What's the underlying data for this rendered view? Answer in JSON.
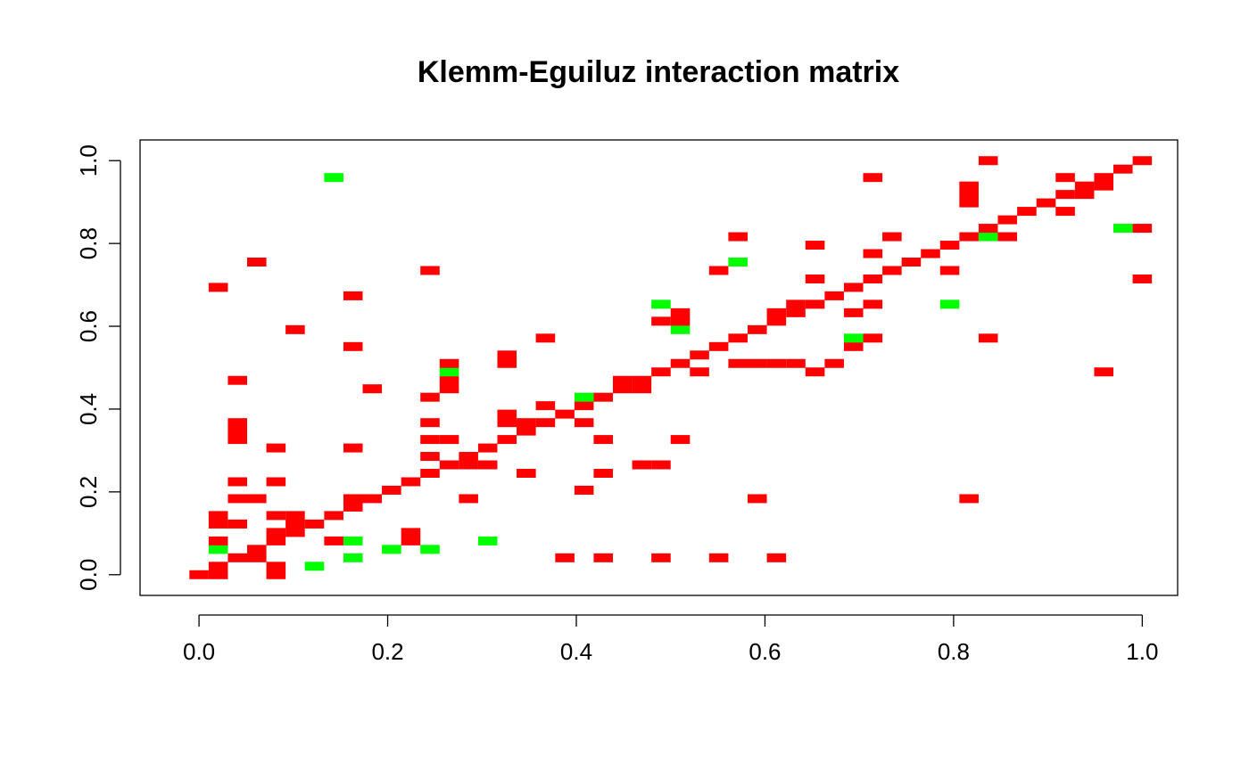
{
  "chart_data": {
    "type": "heatmap",
    "title": "Klemm-Eguiluz interaction matrix",
    "xlabel": "",
    "ylabel": "",
    "xlim": [
      -0.0625,
      1.0375
    ],
    "ylim": [
      -0.05,
      1.05
    ],
    "xticks": [
      0.0,
      0.2,
      0.4,
      0.6,
      0.8,
      1.0
    ],
    "yticks": [
      0.0,
      0.2,
      0.4,
      0.6,
      0.8,
      1.0
    ],
    "xtick_labels": [
      "0.0",
      "0.2",
      "0.4",
      "0.6",
      "0.8",
      "1.0"
    ],
    "ytick_labels": [
      "0.0",
      "0.2",
      "0.4",
      "0.6",
      "0.8",
      "1.0"
    ],
    "grid": false,
    "grid_n": 50,
    "cell_width": 0.0204,
    "cell_height": 0.0204,
    "colors": {
      "positive": "#ff0000",
      "negative": "#00ff00"
    },
    "cells": [
      {
        "x": 0.0,
        "y": 0.0,
        "v": 1
      },
      {
        "x": 0.0204,
        "y": 0.0,
        "v": 1
      },
      {
        "x": 0.0816,
        "y": 0.0,
        "v": 1
      },
      {
        "x": 0.0204,
        "y": 0.0204,
        "v": 1
      },
      {
        "x": 0.0816,
        "y": 0.0204,
        "v": 1
      },
      {
        "x": 0.1224,
        "y": 0.0204,
        "v": -1
      },
      {
        "x": 0.0408,
        "y": 0.0408,
        "v": 1
      },
      {
        "x": 0.0612,
        "y": 0.0408,
        "v": 1
      },
      {
        "x": 0.1633,
        "y": 0.0408,
        "v": -1
      },
      {
        "x": 0.3878,
        "y": 0.0408,
        "v": 1
      },
      {
        "x": 0.4286,
        "y": 0.0408,
        "v": 1
      },
      {
        "x": 0.4898,
        "y": 0.0408,
        "v": 1
      },
      {
        "x": 0.551,
        "y": 0.0408,
        "v": 1
      },
      {
        "x": 0.6122,
        "y": 0.0408,
        "v": 1
      },
      {
        "x": 0.0204,
        "y": 0.0612,
        "v": -1
      },
      {
        "x": 0.0612,
        "y": 0.0612,
        "v": 1
      },
      {
        "x": 0.2041,
        "y": 0.0612,
        "v": -1
      },
      {
        "x": 0.2449,
        "y": 0.0612,
        "v": -1
      },
      {
        "x": 0.0204,
        "y": 0.0816,
        "v": 1
      },
      {
        "x": 0.0816,
        "y": 0.0816,
        "v": 1
      },
      {
        "x": 0.1429,
        "y": 0.0816,
        "v": 1
      },
      {
        "x": 0.1633,
        "y": 0.0816,
        "v": -1
      },
      {
        "x": 0.2245,
        "y": 0.0816,
        "v": 1
      },
      {
        "x": 0.3061,
        "y": 0.0816,
        "v": -1
      },
      {
        "x": 0.0816,
        "y": 0.102,
        "v": 1
      },
      {
        "x": 0.102,
        "y": 0.102,
        "v": 1
      },
      {
        "x": 0.2245,
        "y": 0.102,
        "v": 1
      },
      {
        "x": 0.0204,
        "y": 0.1224,
        "v": 1
      },
      {
        "x": 0.0408,
        "y": 0.1224,
        "v": 1
      },
      {
        "x": 0.102,
        "y": 0.1224,
        "v": 1
      },
      {
        "x": 0.1224,
        "y": 0.1224,
        "v": 1
      },
      {
        "x": 0.0204,
        "y": 0.1429,
        "v": 1
      },
      {
        "x": 0.0816,
        "y": 0.1429,
        "v": 1
      },
      {
        "x": 0.102,
        "y": 0.1429,
        "v": 1
      },
      {
        "x": 0.1429,
        "y": 0.1429,
        "v": 1
      },
      {
        "x": 0.1633,
        "y": 0.1633,
        "v": 1
      },
      {
        "x": 0.0408,
        "y": 0.1837,
        "v": 1
      },
      {
        "x": 0.0612,
        "y": 0.1837,
        "v": 1
      },
      {
        "x": 0.1633,
        "y": 0.1837,
        "v": 1
      },
      {
        "x": 0.1837,
        "y": 0.1837,
        "v": 1
      },
      {
        "x": 0.2857,
        "y": 0.1837,
        "v": 1
      },
      {
        "x": 0.5918,
        "y": 0.1837,
        "v": 1
      },
      {
        "x": 0.8163,
        "y": 0.1837,
        "v": 1
      },
      {
        "x": 0.2041,
        "y": 0.2041,
        "v": 1
      },
      {
        "x": 0.4082,
        "y": 0.2041,
        "v": 1
      },
      {
        "x": 0.0408,
        "y": 0.2245,
        "v": 1
      },
      {
        "x": 0.0816,
        "y": 0.2245,
        "v": 1
      },
      {
        "x": 0.2245,
        "y": 0.2245,
        "v": 1
      },
      {
        "x": 0.2449,
        "y": 0.2449,
        "v": 1
      },
      {
        "x": 0.3469,
        "y": 0.2449,
        "v": 1
      },
      {
        "x": 0.4286,
        "y": 0.2449,
        "v": 1
      },
      {
        "x": 0.2653,
        "y": 0.2653,
        "v": 1
      },
      {
        "x": 0.2857,
        "y": 0.2653,
        "v": 1
      },
      {
        "x": 0.3061,
        "y": 0.2653,
        "v": 1
      },
      {
        "x": 0.4694,
        "y": 0.2653,
        "v": 1
      },
      {
        "x": 0.4898,
        "y": 0.2653,
        "v": 1
      },
      {
        "x": 0.2449,
        "y": 0.2857,
        "v": 1
      },
      {
        "x": 0.2857,
        "y": 0.2857,
        "v": 1
      },
      {
        "x": 0.0816,
        "y": 0.3061,
        "v": 1
      },
      {
        "x": 0.1633,
        "y": 0.3061,
        "v": 1
      },
      {
        "x": 0.3061,
        "y": 0.3061,
        "v": 1
      },
      {
        "x": 0.0408,
        "y": 0.3265,
        "v": 1
      },
      {
        "x": 0.2449,
        "y": 0.3265,
        "v": 1
      },
      {
        "x": 0.2653,
        "y": 0.3265,
        "v": 1
      },
      {
        "x": 0.3265,
        "y": 0.3265,
        "v": 1
      },
      {
        "x": 0.4286,
        "y": 0.3265,
        "v": 1
      },
      {
        "x": 0.5102,
        "y": 0.3265,
        "v": 1
      },
      {
        "x": 0.0408,
        "y": 0.3469,
        "v": 1
      },
      {
        "x": 0.3469,
        "y": 0.3469,
        "v": 1
      },
      {
        "x": 0.0408,
        "y": 0.3673,
        "v": 1
      },
      {
        "x": 0.2449,
        "y": 0.3673,
        "v": 1
      },
      {
        "x": 0.3265,
        "y": 0.3673,
        "v": 1
      },
      {
        "x": 0.3469,
        "y": 0.3673,
        "v": 1
      },
      {
        "x": 0.3673,
        "y": 0.3673,
        "v": 1
      },
      {
        "x": 0.4082,
        "y": 0.3673,
        "v": 1
      },
      {
        "x": 0.3265,
        "y": 0.3878,
        "v": 1
      },
      {
        "x": 0.3878,
        "y": 0.3878,
        "v": 1
      },
      {
        "x": 0.3673,
        "y": 0.4082,
        "v": 1
      },
      {
        "x": 0.4082,
        "y": 0.4082,
        "v": 1
      },
      {
        "x": 0.2449,
        "y": 0.4286,
        "v": 1
      },
      {
        "x": 0.4082,
        "y": 0.4286,
        "v": -1
      },
      {
        "x": 0.4286,
        "y": 0.4286,
        "v": 1
      },
      {
        "x": 0.1837,
        "y": 0.449,
        "v": 1
      },
      {
        "x": 0.2653,
        "y": 0.449,
        "v": 1
      },
      {
        "x": 0.449,
        "y": 0.449,
        "v": 1
      },
      {
        "x": 0.4694,
        "y": 0.449,
        "v": 1
      },
      {
        "x": 0.0408,
        "y": 0.4694,
        "v": 1
      },
      {
        "x": 0.2653,
        "y": 0.4694,
        "v": 1
      },
      {
        "x": 0.449,
        "y": 0.4694,
        "v": 1
      },
      {
        "x": 0.4694,
        "y": 0.4694,
        "v": 1
      },
      {
        "x": 0.2653,
        "y": 0.4898,
        "v": -1
      },
      {
        "x": 0.4898,
        "y": 0.4898,
        "v": 1
      },
      {
        "x": 0.5306,
        "y": 0.4898,
        "v": 1
      },
      {
        "x": 0.6531,
        "y": 0.4898,
        "v": 1
      },
      {
        "x": 0.9592,
        "y": 0.4898,
        "v": 1
      },
      {
        "x": 0.2653,
        "y": 0.5102,
        "v": 1
      },
      {
        "x": 0.3265,
        "y": 0.5102,
        "v": 1
      },
      {
        "x": 0.5102,
        "y": 0.5102,
        "v": 1
      },
      {
        "x": 0.5714,
        "y": 0.5102,
        "v": 1
      },
      {
        "x": 0.5918,
        "y": 0.5102,
        "v": 1
      },
      {
        "x": 0.6122,
        "y": 0.5102,
        "v": 1
      },
      {
        "x": 0.6327,
        "y": 0.5102,
        "v": 1
      },
      {
        "x": 0.6735,
        "y": 0.5102,
        "v": 1
      },
      {
        "x": 0.3265,
        "y": 0.5306,
        "v": 1
      },
      {
        "x": 0.5306,
        "y": 0.5306,
        "v": 1
      },
      {
        "x": 0.1633,
        "y": 0.551,
        "v": 1
      },
      {
        "x": 0.551,
        "y": 0.551,
        "v": 1
      },
      {
        "x": 0.6939,
        "y": 0.551,
        "v": 1
      },
      {
        "x": 0.3673,
        "y": 0.5714,
        "v": 1
      },
      {
        "x": 0.5714,
        "y": 0.5714,
        "v": 1
      },
      {
        "x": 0.6939,
        "y": 0.5714,
        "v": -1
      },
      {
        "x": 0.7143,
        "y": 0.5714,
        "v": 1
      },
      {
        "x": 0.8367,
        "y": 0.5714,
        "v": 1
      },
      {
        "x": 0.102,
        "y": 0.5918,
        "v": 1
      },
      {
        "x": 0.5102,
        "y": 0.5918,
        "v": -1
      },
      {
        "x": 0.5918,
        "y": 0.5918,
        "v": 1
      },
      {
        "x": 0.4898,
        "y": 0.6122,
        "v": 1
      },
      {
        "x": 0.5102,
        "y": 0.6122,
        "v": 1
      },
      {
        "x": 0.6122,
        "y": 0.6122,
        "v": 1
      },
      {
        "x": 0.5102,
        "y": 0.6327,
        "v": 1
      },
      {
        "x": 0.6122,
        "y": 0.6327,
        "v": 1
      },
      {
        "x": 0.6327,
        "y": 0.6327,
        "v": 1
      },
      {
        "x": 0.6939,
        "y": 0.6327,
        "v": 1
      },
      {
        "x": 0.4898,
        "y": 0.6531,
        "v": -1
      },
      {
        "x": 0.6327,
        "y": 0.6531,
        "v": 1
      },
      {
        "x": 0.6531,
        "y": 0.6531,
        "v": 1
      },
      {
        "x": 0.7143,
        "y": 0.6531,
        "v": 1
      },
      {
        "x": 0.7959,
        "y": 0.6531,
        "v": -1
      },
      {
        "x": 0.1633,
        "y": 0.6735,
        "v": 1
      },
      {
        "x": 0.6735,
        "y": 0.6735,
        "v": 1
      },
      {
        "x": 0.0204,
        "y": 0.6939,
        "v": 1
      },
      {
        "x": 0.6939,
        "y": 0.6939,
        "v": 1
      },
      {
        "x": 0.6531,
        "y": 0.7143,
        "v": 1
      },
      {
        "x": 0.7143,
        "y": 0.7143,
        "v": 1
      },
      {
        "x": 1.0,
        "y": 0.7143,
        "v": 1
      },
      {
        "x": 0.2449,
        "y": 0.7347,
        "v": 1
      },
      {
        "x": 0.551,
        "y": 0.7347,
        "v": 1
      },
      {
        "x": 0.7347,
        "y": 0.7347,
        "v": 1
      },
      {
        "x": 0.7959,
        "y": 0.7347,
        "v": 1
      },
      {
        "x": 0.0612,
        "y": 0.7551,
        "v": 1
      },
      {
        "x": 0.5714,
        "y": 0.7551,
        "v": -1
      },
      {
        "x": 0.7551,
        "y": 0.7551,
        "v": 1
      },
      {
        "x": 0.7143,
        "y": 0.7755,
        "v": 1
      },
      {
        "x": 0.7755,
        "y": 0.7755,
        "v": 1
      },
      {
        "x": 0.6531,
        "y": 0.7959,
        "v": 1
      },
      {
        "x": 0.7959,
        "y": 0.7959,
        "v": 1
      },
      {
        "x": 0.5714,
        "y": 0.8163,
        "v": 1
      },
      {
        "x": 0.7347,
        "y": 0.8163,
        "v": 1
      },
      {
        "x": 0.8163,
        "y": 0.8163,
        "v": 1
      },
      {
        "x": 0.8367,
        "y": 0.8163,
        "v": -1
      },
      {
        "x": 0.8571,
        "y": 0.8163,
        "v": 1
      },
      {
        "x": 0.8367,
        "y": 0.8367,
        "v": 1
      },
      {
        "x": 0.9796,
        "y": 0.8367,
        "v": -1
      },
      {
        "x": 1.0,
        "y": 0.8367,
        "v": 1
      },
      {
        "x": 0.8571,
        "y": 0.8571,
        "v": 1
      },
      {
        "x": 0.8776,
        "y": 0.8776,
        "v": 1
      },
      {
        "x": 0.9184,
        "y": 0.8776,
        "v": 1
      },
      {
        "x": 0.898,
        "y": 0.898,
        "v": 1
      },
      {
        "x": 0.8163,
        "y": 0.898,
        "v": 1
      },
      {
        "x": 0.8163,
        "y": 0.9184,
        "v": 1
      },
      {
        "x": 0.9184,
        "y": 0.9184,
        "v": 1
      },
      {
        "x": 0.9388,
        "y": 0.9184,
        "v": 1
      },
      {
        "x": 0.8163,
        "y": 0.9388,
        "v": 1
      },
      {
        "x": 0.9388,
        "y": 0.9388,
        "v": 1
      },
      {
        "x": 0.9592,
        "y": 0.9388,
        "v": 1
      },
      {
        "x": 0.1429,
        "y": 0.9592,
        "v": -1
      },
      {
        "x": 0.7143,
        "y": 0.9592,
        "v": 1
      },
      {
        "x": 0.9184,
        "y": 0.9592,
        "v": 1
      },
      {
        "x": 0.9592,
        "y": 0.9592,
        "v": 1
      },
      {
        "x": 0.9796,
        "y": 0.9796,
        "v": 1
      },
      {
        "x": 0.8367,
        "y": 1.0,
        "v": 1
      },
      {
        "x": 1.0,
        "y": 1.0,
        "v": 1
      }
    ]
  }
}
